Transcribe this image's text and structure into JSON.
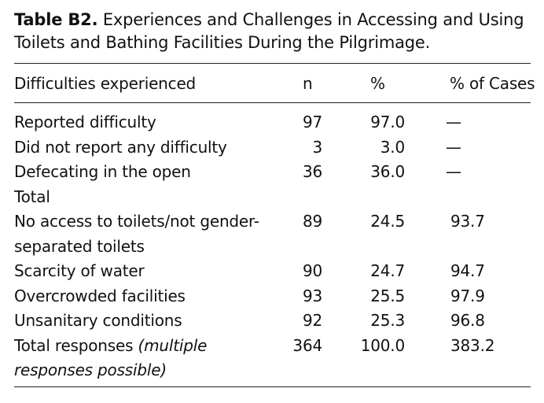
{
  "caption": {
    "label": "Table B2.",
    "title": "Experiences and Challenges in Accessing and Using Toilets and Bathing Facilities During the Pilgrimage."
  },
  "columns": {
    "label": "Difficulties experienced",
    "n": "n",
    "pct": "%",
    "cases": "% of Cases"
  },
  "rows": [
    {
      "label": "Reported difficulty",
      "n": "97",
      "pct": "97.0",
      "cases": "—"
    },
    {
      "label": "Did not report any difficulty",
      "n": "3",
      "pct": "3.0",
      "cases": "—"
    },
    {
      "label": "Defecating in the open",
      "n": "36",
      "pct": "36.0",
      "cases": "—"
    },
    {
      "label": "Total",
      "n": "",
      "pct": "",
      "cases": ""
    },
    {
      "label": "No access to toilets/not gender-separated toilets",
      "n": "89",
      "pct": "24.5",
      "cases": "93.7"
    },
    {
      "label": "Scarcity of water",
      "n": "90",
      "pct": "24.7",
      "cases": "94.7"
    },
    {
      "label": "Overcrowded facilities",
      "n": "93",
      "pct": "25.5",
      "cases": "97.9"
    },
    {
      "label": "Unsanitary conditions",
      "n": "92",
      "pct": "25.3",
      "cases": "96.8"
    },
    {
      "label": "Total responses",
      "note": "(multiple responses possible)",
      "n": "364",
      "pct": "100.0",
      "cases": "383.2"
    }
  ]
}
